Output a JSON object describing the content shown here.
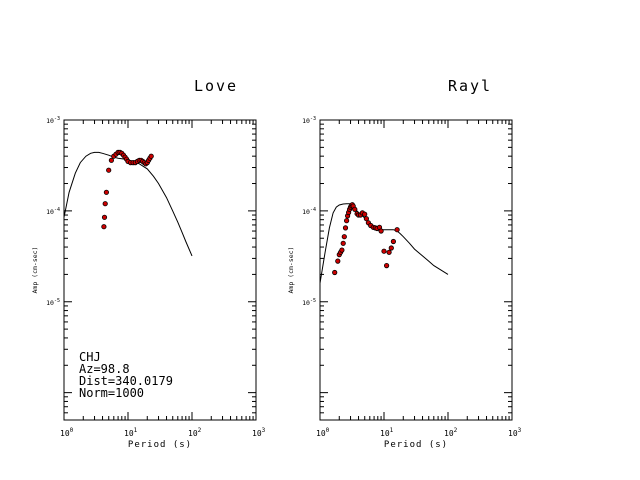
{
  "chart_data": [
    {
      "type": "scatter",
      "title": "Love",
      "xlabel": "Period (s)",
      "ylabel": "Amp (cm-sec)",
      "xscale": "log",
      "yscale": "log",
      "xlim": [
        1,
        1000
      ],
      "ylim": [
        5e-07,
        0.001
      ],
      "grid": false,
      "x_tick_labels": [
        {
          "base": "10",
          "exp": "0"
        },
        {
          "base": "10",
          "exp": "1"
        },
        {
          "base": "10",
          "exp": "2"
        },
        {
          "base": "10",
          "exp": "3"
        }
      ],
      "y_tick_labels": [
        {
          "base": "10",
          "exp": "-3"
        },
        {
          "base": "10",
          "exp": "-4"
        },
        {
          "base": "10",
          "exp": "-5"
        }
      ],
      "annotations": [
        "CHJ",
        "Az=98.8",
        "Dist=340.0179",
        "Norm=1000"
      ],
      "series": [
        {
          "kind": "line",
          "x": [
            1.0,
            1.2,
            1.5,
            1.8,
            2.2,
            2.6,
            3.0,
            3.5,
            4.0,
            5.0,
            6.0,
            7.0,
            8.0,
            10.0,
            12.0,
            15.0,
            20.0,
            25.0,
            30.0,
            40.0,
            50.0,
            60.0,
            70.0,
            80.0,
            100.0
          ],
          "y": [
            8.5e-05,
            0.00016,
            0.00026,
            0.00034,
            0.0004,
            0.00043,
            0.00044,
            0.00044,
            0.00043,
            0.00041,
            0.00039,
            0.00038,
            0.000375,
            0.000365,
            0.00035,
            0.00033,
            0.00029,
            0.00024,
            0.0002,
            0.00014,
            0.0001,
            7.5e-05,
            5.8e-05,
            4.6e-05,
            3.2e-05
          ]
        },
        {
          "kind": "points",
          "color": "#cc0000",
          "x": [
            4.2,
            4.3,
            4.4,
            4.6,
            5.0,
            5.5,
            6.0,
            6.5,
            7.0,
            7.5,
            8.0,
            8.5,
            9.0,
            9.5,
            10.0,
            11.0,
            12.0,
            13.0,
            14.0,
            15.0,
            16.0,
            17.0,
            18.0,
            19.0,
            20.0,
            21.0,
            22.0,
            23.0
          ],
          "y": [
            6.7e-05,
            8.5e-05,
            0.00012,
            0.00016,
            0.00028,
            0.00036,
            0.0004,
            0.00042,
            0.00044,
            0.00044,
            0.00043,
            0.00041,
            0.00039,
            0.00037,
            0.00035,
            0.00034,
            0.00034,
            0.00034,
            0.00035,
            0.00036,
            0.00036,
            0.00035,
            0.00034,
            0.00033,
            0.00034,
            0.00036,
            0.00038,
            0.0004
          ]
        }
      ]
    },
    {
      "type": "scatter",
      "title": "Rayl",
      "xlabel": "Period (s)",
      "ylabel": "Amp (cm-sec)",
      "xscale": "log",
      "yscale": "log",
      "xlim": [
        1,
        1000
      ],
      "ylim": [
        5e-07,
        0.001
      ],
      "grid": false,
      "x_tick_labels": [
        {
          "base": "10",
          "exp": "0"
        },
        {
          "base": "10",
          "exp": "1"
        },
        {
          "base": "10",
          "exp": "2"
        },
        {
          "base": "10",
          "exp": "3"
        }
      ],
      "y_tick_labels": [
        {
          "base": "10",
          "exp": "-3"
        },
        {
          "base": "10",
          "exp": "-4"
        },
        {
          "base": "10",
          "exp": "-5"
        }
      ],
      "series": [
        {
          "kind": "line",
          "x": [
            1.0,
            1.2,
            1.4,
            1.6,
            1.8,
            2.0,
            2.3,
            2.6,
            3.0,
            3.3,
            3.6,
            4.0,
            4.5,
            5.0,
            6.0,
            7.0,
            8.0,
            9.0,
            10.0,
            12.0,
            14.0,
            16.0,
            18.0,
            20.0,
            25.0,
            30.0,
            40.0,
            50.0,
            60.0,
            80.0,
            100.0
          ],
          "y": [
            1.6e-05,
            3.5e-05,
            6.5e-05,
            9.5e-05,
            0.00011,
            0.000116,
            0.000119,
            0.00012,
            0.00012,
            0.000115,
            0.000105,
            9.5e-05,
            9e-05,
            8.3e-05,
            7.2e-05,
            6.6e-05,
            6.3e-05,
            6.2e-05,
            6.2e-05,
            6.2e-05,
            6.2e-05,
            6e-05,
            5.6e-05,
            5.2e-05,
            4.4e-05,
            3.8e-05,
            3.2e-05,
            2.8e-05,
            2.5e-05,
            2.2e-05,
            2e-05
          ]
        },
        {
          "kind": "points",
          "color": "#cc0000",
          "x": [
            1.7,
            1.9,
            2.0,
            2.1,
            2.2,
            2.3,
            2.4,
            2.5,
            2.6,
            2.7,
            2.8,
            2.9,
            3.0,
            3.1,
            3.2,
            3.3,
            3.5,
            3.8,
            4.0,
            4.3,
            4.6,
            5.0,
            5.3,
            5.7,
            6.2,
            6.8,
            7.3,
            7.8,
            8.5,
            9.0,
            10.0,
            11.0,
            12.0,
            13.0,
            14.0,
            16.0
          ],
          "y": [
            2.1e-05,
            2.8e-05,
            3.3e-05,
            3.5e-05,
            3.7e-05,
            4.4e-05,
            5.2e-05,
            6.5e-05,
            7.8e-05,
            8.8e-05,
            9.6e-05,
            0.000104,
            0.00011,
            0.000114,
            0.000117,
            0.000113,
            0.000104,
            9.3e-05,
            9e-05,
            9e-05,
            9.5e-05,
            9.2e-05,
            8.2e-05,
            7.4e-05,
            6.9e-05,
            6.6e-05,
            6.5e-05,
            6.4e-05,
            6.6e-05,
            6e-05,
            3.6e-05,
            2.5e-05,
            3.5e-05,
            3.9e-05,
            4.6e-05,
            6.2e-05
          ]
        }
      ]
    }
  ]
}
